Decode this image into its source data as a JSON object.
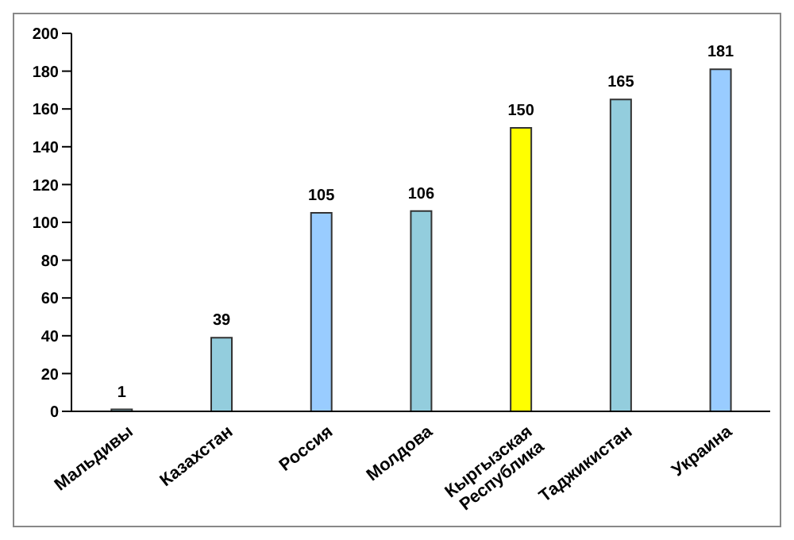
{
  "chart_data": {
    "type": "bar",
    "categories": [
      "Мальдивы",
      "Казахстан",
      "Россия",
      "Молдова",
      "Кыргызская Республика",
      "Таджикистан",
      "Украина"
    ],
    "values": [
      1,
      39,
      105,
      106,
      150,
      165,
      181
    ],
    "colors": [
      "#93cddd",
      "#93cddd",
      "#99ccff",
      "#93cddd",
      "#ffff00",
      "#93cddd",
      "#99ccff"
    ],
    "ylim": [
      0,
      200
    ],
    "yticks": [
      0,
      20,
      40,
      60,
      80,
      100,
      120,
      140,
      160,
      180,
      200
    ],
    "data_labels": true,
    "grid": false,
    "legend": false
  }
}
